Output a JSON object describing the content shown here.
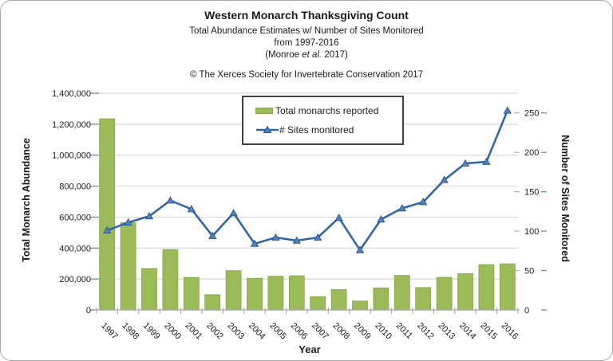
{
  "header": {
    "title": "Western Monarch Thanksgiving Count",
    "subtitle1": "Total Abundance Estimates w/ Number of Sites Monitored",
    "subtitle2": "from 1997-2016",
    "subtitle3_pre": "(Monroe ",
    "subtitle3_etal": "et al.",
    "subtitle3_post": " 2017)",
    "copyright": "© The Xerces Society for Invertebrate Conservation 2017"
  },
  "chart_data": {
    "type": "combo-bar-line",
    "title": "Western Monarch Thanksgiving Count",
    "categories": [
      "1997",
      "1998",
      "1999",
      "2000",
      "2001",
      "2002",
      "2003",
      "2004",
      "2005",
      "2006",
      "2007",
      "2008",
      "2009",
      "2010",
      "2011",
      "2012",
      "2013",
      "2014",
      "2015",
      "2016"
    ],
    "series": [
      {
        "name": "Total monarchs reported",
        "type": "bar",
        "axis": "left",
        "color": "#9BBB59",
        "border": "#86A446",
        "values": [
          1235000,
          564000,
          268000,
          390000,
          210000,
          99000,
          254000,
          205000,
          218000,
          221000,
          86000,
          132000,
          58000,
          143000,
          223000,
          145000,
          211000,
          235000,
          293000,
          298000
        ]
      },
      {
        "name": "# Sites monitored",
        "type": "line",
        "axis": "right",
        "marker": "triangle",
        "color": "#3465A4",
        "marker_fill": "#4F81BD",
        "marker_stroke": "#2C5689",
        "values": [
          101,
          111,
          119,
          139,
          128,
          94,
          123,
          84,
          92,
          88,
          92,
          117,
          76,
          115,
          129,
          137,
          165,
          186,
          188,
          253
        ]
      }
    ],
    "left_axis": {
      "label": "Total Monarch Abundance",
      "min": 0,
      "max": 1400000,
      "step": 200000,
      "ticks": [
        0,
        200000,
        400000,
        600000,
        800000,
        1000000,
        1200000,
        1400000
      ],
      "tick_labels": [
        "0",
        "200,000",
        "400,000",
        "600,000",
        "800,000",
        "1,000,000",
        "1,200,000",
        "1,400,000"
      ]
    },
    "right_axis": {
      "label": "Number of Sites Monitored",
      "min": 0,
      "max": 275,
      "step": 50,
      "ticks": [
        0,
        50,
        100,
        150,
        200,
        250
      ]
    },
    "x_axis": {
      "label": "Year"
    },
    "legend": {
      "position": "top-center",
      "border_color": "#404040"
    },
    "grid": true,
    "colors": {
      "grid": "#D9D9D9",
      "axis": "#A6A6A6",
      "axis_tick_accent": "#5E87BA",
      "text": "#1A1A1A",
      "frame": "#A9A9A9",
      "background": "#FFFFFF"
    }
  }
}
